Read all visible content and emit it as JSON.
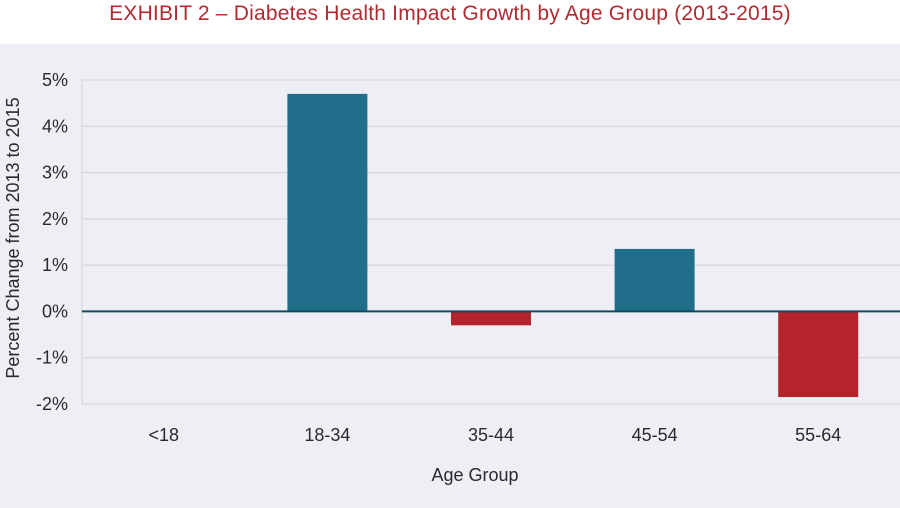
{
  "chart_data": {
    "type": "bar",
    "title": "EXHIBIT 2 – Diabetes Health Impact Growth by Age Group (2013-2015)",
    "xlabel": "Age Group",
    "ylabel": "Percent Change from 2013 to 2015",
    "categories": [
      "<18",
      "18-34",
      "35-44",
      "45-54",
      "55-64"
    ],
    "values": [
      0.0,
      4.7,
      -0.3,
      1.35,
      -1.85
    ],
    "value_unit": "%",
    "ylim": [
      -2,
      5
    ],
    "yticks": [
      5,
      4,
      3,
      2,
      1,
      0,
      -1,
      -2
    ],
    "ytick_labels": [
      "5%",
      "4%",
      "3%",
      "2%",
      "1%",
      "0%",
      "-1%",
      "-2%"
    ],
    "grid": true,
    "legend": "none",
    "colors": {
      "positive": "#216e8b",
      "negative": "#b5232d",
      "title": "#b22a31",
      "background": "#eeeff4",
      "gridline": "#cfd1d6",
      "zero_line": "#0f4a63"
    }
  }
}
